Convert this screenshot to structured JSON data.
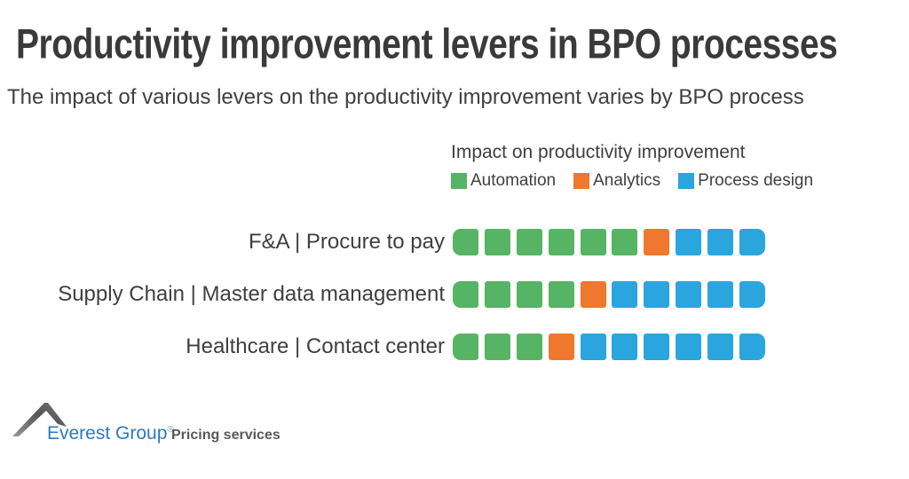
{
  "title": "Productivity improvement levers in BPO processes",
  "subtitle": "The impact of various levers on the productivity improvement varies by BPO process",
  "legend": {
    "title": "Impact on productivity improvement",
    "items": [
      {
        "label": "Automation",
        "color": "#57B464"
      },
      {
        "label": "Analytics",
        "color": "#F0782E"
      },
      {
        "label": "Process design",
        "color": "#2BA5DE"
      }
    ]
  },
  "chart_data": {
    "type": "bar",
    "subtype": "segmented-horizontal-stacked",
    "unit": "squares (impact weight out of 10)",
    "categories": [
      "F&A | Procure to pay",
      "Supply Chain | Master data management",
      "Healthcare | Contact center"
    ],
    "series": [
      {
        "name": "Automation",
        "color": "#57B464",
        "values": [
          6,
          4,
          3
        ]
      },
      {
        "name": "Analytics",
        "color": "#F0782E",
        "values": [
          1,
          1,
          1
        ]
      },
      {
        "name": "Process design",
        "color": "#2BA5DE",
        "values": [
          3,
          5,
          6
        ]
      }
    ],
    "total_per_row": 10,
    "legend_position": "top",
    "grid": false
  },
  "footer": {
    "brand": "Everest Group",
    "registered_mark": "®",
    "tagline": "Pricing services",
    "brand_color": "#2E79BE",
    "tagline_color": "#58595B",
    "logo_icon": "mountain-peak-icon"
  }
}
